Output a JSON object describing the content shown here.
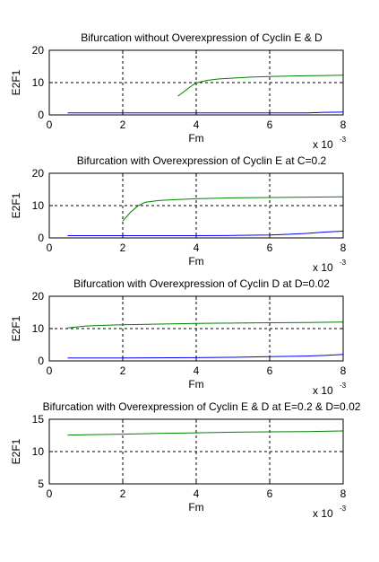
{
  "chart_data": [
    {
      "type": "line",
      "title": "Bifurcation without Overexpression of Cyclin E & D",
      "xlabel": "Fm",
      "ylabel": "E2F1",
      "x_multiplier": "x 10",
      "x_multiplier_exp": "-3",
      "xlim": [
        0,
        8
      ],
      "ylim": [
        0,
        20
      ],
      "xticks": [
        "0",
        "2",
        "4",
        "6",
        "8"
      ],
      "yticks": [
        "0",
        "10",
        "20"
      ],
      "grid": true,
      "series": [
        {
          "color": "#008000",
          "x": [
            3.5,
            3.7,
            3.9,
            4.0,
            4.3,
            4.6,
            5.0,
            5.5,
            6.0,
            6.5,
            7.0,
            7.5,
            8.0
          ],
          "y": [
            5.8,
            7.5,
            9.2,
            9.9,
            10.7,
            11.1,
            11.4,
            11.7,
            11.9,
            12.0,
            12.1,
            12.2,
            12.3
          ]
        },
        {
          "color": "#0000ff",
          "x": [
            0.5,
            2.0,
            4.0,
            6.0,
            7.0,
            7.5,
            8.0
          ],
          "y": [
            0.6,
            0.6,
            0.6,
            0.6,
            0.65,
            0.8,
            0.9
          ]
        }
      ]
    },
    {
      "type": "line",
      "title": "Bifurcation with Overexpression of Cyclin E at C=0.2",
      "xlabel": "Fm",
      "ylabel": "E2F1",
      "x_multiplier": "x 10",
      "x_multiplier_exp": "-3",
      "xlim": [
        0,
        8
      ],
      "ylim": [
        0,
        20
      ],
      "xticks": [
        "0",
        "2",
        "4",
        "6",
        "8"
      ],
      "yticks": [
        "0",
        "10",
        "20"
      ],
      "grid": true,
      "series": [
        {
          "color": "#008000",
          "x": [
            2.0,
            2.2,
            2.4,
            2.6,
            3.0,
            3.5,
            4.0,
            5.0,
            6.0,
            7.0,
            8.0
          ],
          "y": [
            5.2,
            7.8,
            9.8,
            11.0,
            11.6,
            11.9,
            12.1,
            12.4,
            12.5,
            12.6,
            12.7
          ]
        },
        {
          "color": "#0000ff",
          "x": [
            0.5,
            2.0,
            4.0,
            5.0,
            6.0,
            6.5,
            7.0,
            7.5,
            8.0
          ],
          "y": [
            0.7,
            0.7,
            0.7,
            0.75,
            0.9,
            1.1,
            1.4,
            1.8,
            2.1
          ]
        }
      ]
    },
    {
      "type": "line",
      "title": "Bifurcation with Overexpression of Cyclin D at D=0.02",
      "xlabel": "Fm",
      "ylabel": "E2F1",
      "x_multiplier": "x 10",
      "x_multiplier_exp": "-3",
      "xlim": [
        0,
        8
      ],
      "ylim": [
        0,
        20
      ],
      "xticks": [
        "0",
        "2",
        "4",
        "6",
        "8"
      ],
      "yticks": [
        "0",
        "10",
        "20"
      ],
      "grid": true,
      "series": [
        {
          "color": "#008000",
          "x": [
            0.5,
            1.0,
            1.5,
            2.0,
            3.0,
            4.0,
            5.0,
            6.0,
            7.0,
            8.0
          ],
          "y": [
            10.2,
            10.8,
            11.0,
            11.2,
            11.4,
            11.6,
            11.7,
            11.8,
            11.9,
            12.0
          ]
        },
        {
          "color": "#0000ff",
          "x": [
            0.5,
            2.0,
            4.0,
            5.0,
            6.0,
            7.0,
            7.5,
            8.0
          ],
          "y": [
            0.9,
            0.9,
            1.0,
            1.1,
            1.3,
            1.5,
            1.7,
            2.0
          ]
        }
      ]
    },
    {
      "type": "line",
      "title": "Bifurcation with Overexpression of Cyclin E & D  at E=0.2 & D=0.02",
      "xlabel": "Fm",
      "ylabel": "E2F1",
      "x_multiplier": "x 10",
      "x_multiplier_exp": "-3",
      "xlim": [
        0,
        8
      ],
      "ylim": [
        5,
        15
      ],
      "xticks": [
        "0",
        "2",
        "4",
        "6",
        "8"
      ],
      "yticks": [
        "5",
        "10",
        "15"
      ],
      "grid": true,
      "series": [
        {
          "color": "#008000",
          "x": [
            0.5,
            1.0,
            2.0,
            3.0,
            4.0,
            5.0,
            6.0,
            7.0,
            8.0
          ],
          "y": [
            12.55,
            12.6,
            12.7,
            12.8,
            12.9,
            13.0,
            13.05,
            13.1,
            13.2
          ]
        }
      ]
    }
  ]
}
